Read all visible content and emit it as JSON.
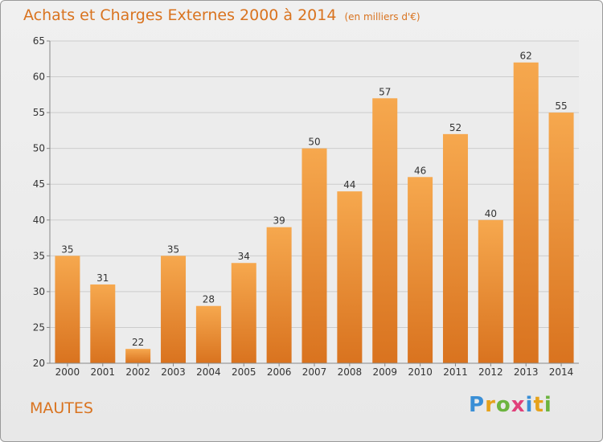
{
  "title": "Achats et Charges Externes 2000 à 2014",
  "unit": "(en milliers d'€)",
  "commune": "MAUTES",
  "logo": {
    "letters": [
      "P",
      "r",
      "o",
      "x",
      "i",
      "t",
      "i"
    ],
    "colors": [
      "#3a8fd6",
      "#e6a21b",
      "#6cb43f",
      "#e0407a",
      "#3a8fd6",
      "#e6a21b",
      "#6cb43f"
    ]
  },
  "colors": {
    "bar_top": "#f6a84e",
    "bar_bottom": "#d9731f",
    "title": "#d9731f",
    "grid": "#cccccc"
  },
  "chart_data": {
    "type": "bar",
    "categories": [
      "2000",
      "2001",
      "2002",
      "2003",
      "2004",
      "2005",
      "2006",
      "2007",
      "2008",
      "2009",
      "2010",
      "2011",
      "2012",
      "2013",
      "2014"
    ],
    "values": [
      35,
      31,
      22,
      35,
      28,
      34,
      39,
      50,
      44,
      57,
      46,
      52,
      40,
      62,
      55
    ],
    "ylim": [
      20,
      65
    ],
    "yticks": [
      20,
      25,
      30,
      35,
      40,
      45,
      50,
      55,
      60,
      65
    ],
    "grid": true,
    "legend": "none"
  }
}
